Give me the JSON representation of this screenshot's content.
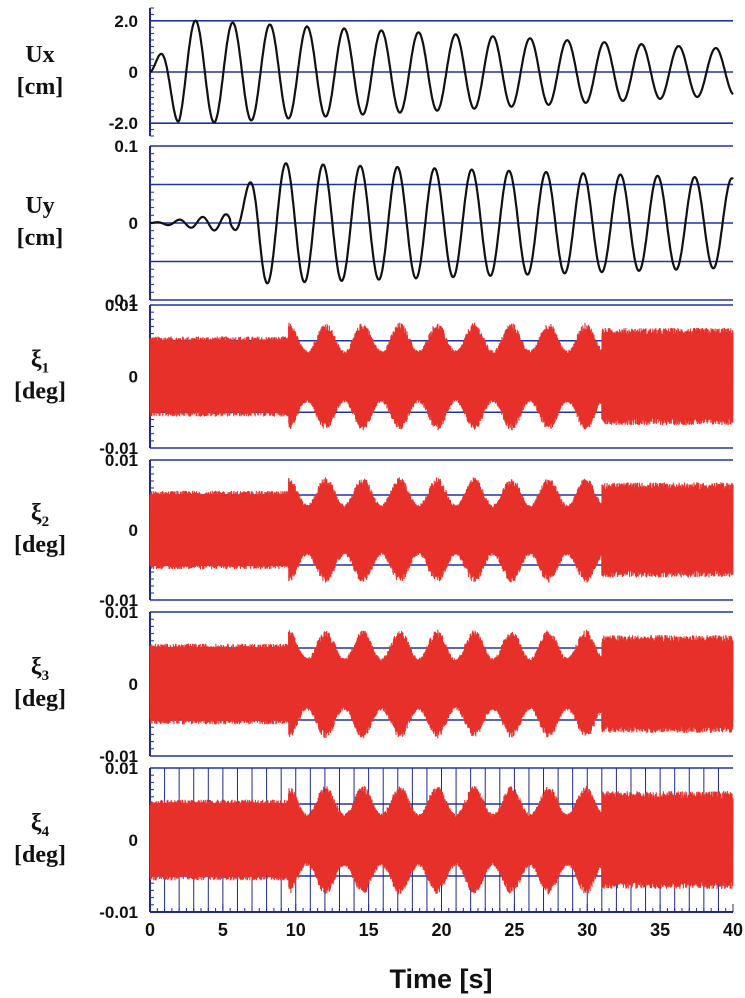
{
  "chart_data": {
    "type": "line",
    "x_axis": {
      "label": "Time [s]",
      "range": [
        0,
        40
      ],
      "ticks": [
        0,
        5,
        10,
        15,
        20,
        25,
        30,
        35,
        40
      ],
      "tick_labels": [
        "0",
        "5",
        "10",
        "15",
        "20",
        "25",
        "30",
        "35",
        "40"
      ]
    },
    "panels": [
      {
        "id": "ux",
        "name": "Ux",
        "subscript": "",
        "unit": "[cm]",
        "ylim": [
          -2.5,
          2.5
        ],
        "ticks": [
          2.0,
          0,
          -2.0
        ],
        "tick_labels": [
          "2.0",
          "0",
          "-2.0"
        ],
        "series_color": "#111111",
        "signal": {
          "kind": "sine",
          "amp_start": 2.1,
          "amp_end": 0.9,
          "period": 2.55,
          "onset": 0,
          "pre_amp": 0
        }
      },
      {
        "id": "uy",
        "name": "Uy",
        "subscript": "",
        "unit": "[cm]",
        "ylim": [
          -0.1,
          0.1
        ],
        "ticks": [
          0.1,
          0.05,
          0,
          -0.05,
          -0.1
        ],
        "tick_labels": [
          "0.1",
          "",
          "0",
          "",
          "-0.1"
        ],
        "series_color": "#111111",
        "signal": {
          "kind": "sine",
          "amp_start": 0.08,
          "amp_end": 0.058,
          "period": 2.55,
          "onset": 5.5,
          "pre_amp": 0.012
        }
      },
      {
        "id": "xi1",
        "name": "ξ",
        "subscript": "1",
        "unit": "[deg]",
        "ylim": [
          -0.01,
          0.01
        ],
        "ticks": [
          0.01,
          0.005,
          0,
          -0.005,
          -0.01
        ],
        "tick_labels": [
          "0.01",
          "",
          "0",
          "",
          "-0.01"
        ],
        "series_color": "#e8302a",
        "signal": {
          "kind": "band",
          "base": 0.0052,
          "beat_amp": 0.0018,
          "beat_period": 2.55,
          "beat_onset": 9.5,
          "beat_end": 31,
          "late": 0.0063
        }
      },
      {
        "id": "xi2",
        "name": "ξ",
        "subscript": "2",
        "unit": "[deg]",
        "ylim": [
          -0.01,
          0.01
        ],
        "ticks": [
          0.01,
          0.005,
          0,
          -0.005,
          -0.01
        ],
        "tick_labels": [
          "0.01",
          "",
          "0",
          "",
          "-0.01"
        ],
        "series_color": "#e8302a",
        "signal": {
          "kind": "band",
          "base": 0.0052,
          "beat_amp": 0.0018,
          "beat_period": 2.55,
          "beat_onset": 9.5,
          "beat_end": 31,
          "late": 0.0063
        }
      },
      {
        "id": "xi3",
        "name": "ξ",
        "subscript": "3",
        "unit": "[deg]",
        "ylim": [
          -0.01,
          0.01
        ],
        "ticks": [
          0.01,
          0.005,
          0,
          -0.005,
          -0.01
        ],
        "tick_labels": [
          "0.01",
          "",
          "0",
          "",
          "-0.01"
        ],
        "series_color": "#e8302a",
        "signal": {
          "kind": "band",
          "base": 0.0052,
          "beat_amp": 0.0018,
          "beat_period": 2.55,
          "beat_onset": 9.5,
          "beat_end": 31,
          "late": 0.0063
        }
      },
      {
        "id": "xi4",
        "name": "ξ",
        "subscript": "4",
        "unit": "[deg]",
        "ylim": [
          -0.01,
          0.01
        ],
        "ticks": [
          0.01,
          0.005,
          0,
          -0.005,
          -0.01
        ],
        "tick_labels": [
          "0.01",
          "",
          "0",
          "",
          "-0.01"
        ],
        "series_color": "#e8302a",
        "vertical_grid": true,
        "signal": {
          "kind": "band",
          "base": 0.0052,
          "beat_amp": 0.0018,
          "beat_period": 2.55,
          "beat_onset": 9.5,
          "beat_end": 31,
          "late": 0.0063
        }
      }
    ],
    "grid": true,
    "grid_color": "#2233aa"
  }
}
